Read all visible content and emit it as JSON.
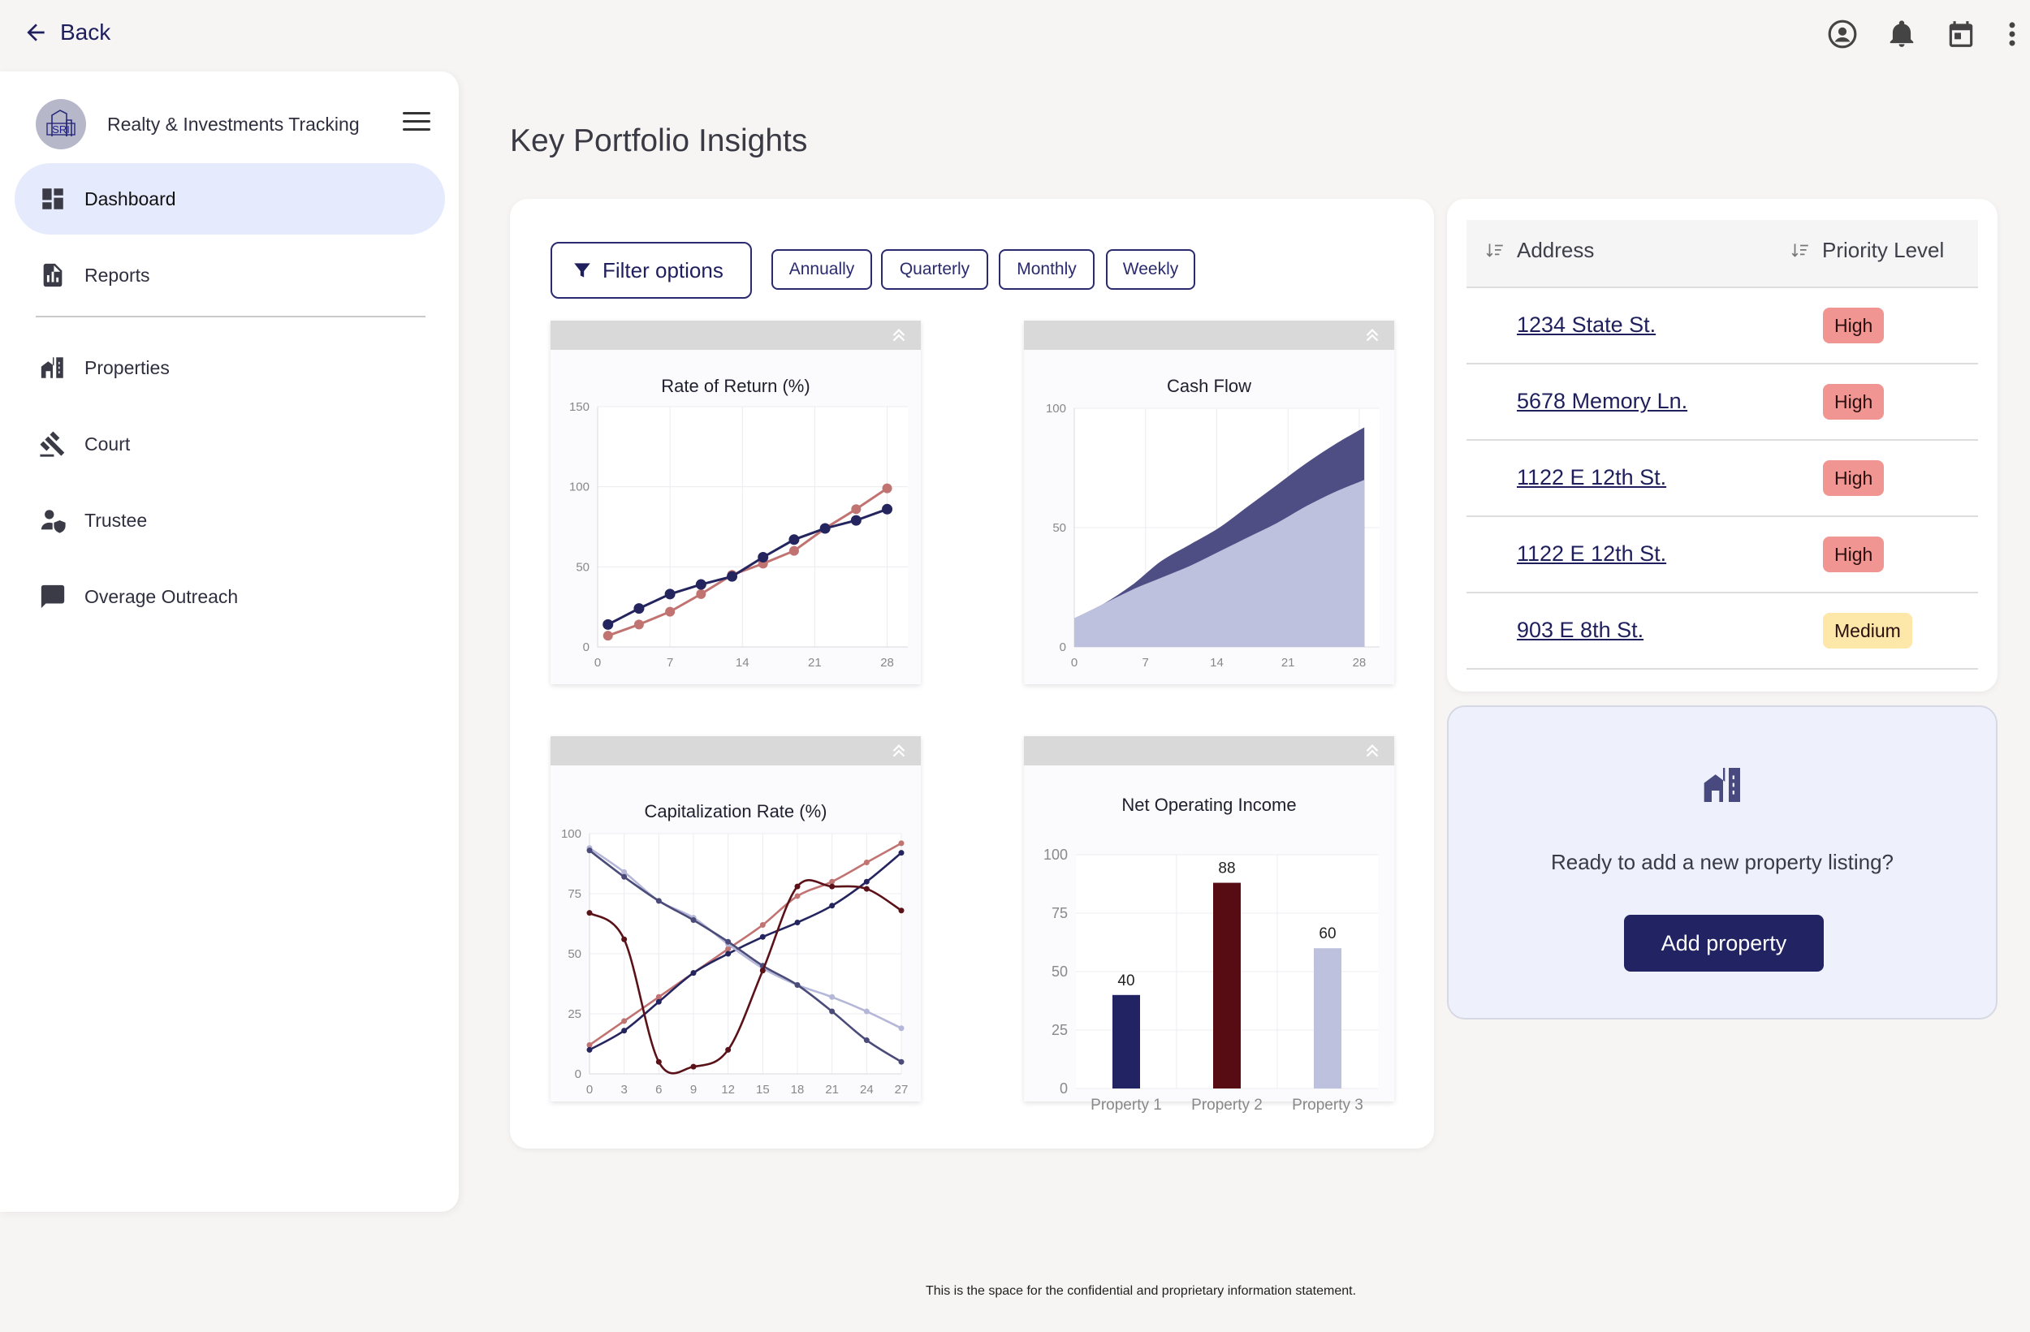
{
  "topbar": {
    "back_label": "Back"
  },
  "sidebar": {
    "brand": "Realty & Investments Tracking",
    "logo_text": "SRI",
    "items": [
      {
        "label": "Dashboard",
        "icon": "dashboard-icon",
        "active": true
      },
      {
        "label": "Reports",
        "icon": "report-icon"
      },
      {
        "label": "Properties",
        "icon": "building-icon"
      },
      {
        "label": "Court",
        "icon": "gavel-icon"
      },
      {
        "label": "Trustee",
        "icon": "person-shield-icon"
      },
      {
        "label": "Overage Outreach",
        "icon": "chat-icon"
      }
    ]
  },
  "main": {
    "title": "Key Portfolio Insights",
    "filter_label": "Filter options",
    "periods": [
      "Annually",
      "Quarterly",
      "Monthly",
      "Weekly"
    ]
  },
  "chart_data": [
    {
      "type": "line",
      "title": "Rate of Return (%)",
      "xticks": [
        "0",
        "7",
        "14",
        "21",
        "28"
      ],
      "yticks": [
        "0",
        "50",
        "100",
        "150"
      ],
      "xlim": [
        0,
        30
      ],
      "ylim": [
        0,
        150
      ],
      "x": [
        0,
        3,
        6,
        9,
        12,
        15,
        18,
        21,
        24,
        27
      ],
      "series": [
        {
          "values": [
            7,
            14,
            22,
            33,
            45,
            52,
            60,
            74,
            86,
            99
          ],
          "color": "#c17372"
        },
        {
          "values": [
            14,
            24,
            33,
            39,
            44,
            56,
            67,
            74,
            79,
            86
          ],
          "color": "#24245e"
        }
      ]
    },
    {
      "type": "area",
      "title": "Cash Flow",
      "xticks": [
        "0",
        "7",
        "14",
        "21",
        "28"
      ],
      "yticks": [
        "0",
        "50",
        "100"
      ],
      "xlim": [
        0,
        30
      ],
      "ylim": [
        0,
        100
      ],
      "x": [
        0,
        3,
        6,
        9,
        12,
        15,
        18,
        21,
        24,
        27,
        30
      ],
      "series": [
        {
          "values": [
            12,
            18,
            24,
            29,
            34,
            40,
            46,
            52,
            59,
            65,
            70
          ],
          "color": "#bec1dd"
        },
        {
          "values": [
            12,
            18,
            26,
            36,
            43,
            50,
            59,
            68,
            77,
            85,
            92
          ],
          "color": "#4e4e85"
        }
      ]
    },
    {
      "type": "line",
      "title": "Capitalization Rate (%)",
      "xticks": [
        "0",
        "3",
        "6",
        "9",
        "12",
        "15",
        "18",
        "21",
        "24",
        "27"
      ],
      "yticks": [
        "0",
        "25",
        "50",
        "75",
        "100"
      ],
      "xlim": [
        0,
        27
      ],
      "ylim": [
        0,
        100
      ],
      "x": [
        0,
        3,
        6,
        9,
        12,
        15,
        18,
        21,
        24,
        27
      ],
      "series": [
        {
          "values": [
            12,
            22,
            32,
            42,
            52,
            62,
            74,
            80,
            88,
            96
          ],
          "color": "#c17372"
        },
        {
          "values": [
            10,
            18,
            30,
            42,
            50,
            57,
            63,
            70,
            80,
            92
          ],
          "color": "#24245e"
        },
        {
          "values": [
            94,
            84,
            72,
            65,
            54,
            44,
            37,
            32,
            26,
            19
          ],
          "color": "#b4b7d8"
        },
        {
          "values": [
            93,
            82,
            72,
            64,
            55,
            45,
            37,
            26,
            14,
            5
          ],
          "color": "#4b4b7a"
        },
        {
          "values": [
            67,
            56,
            5,
            3,
            10,
            43,
            78,
            78,
            77,
            68
          ],
          "color": "#5a1218"
        }
      ]
    },
    {
      "type": "bar",
      "title": "Net Operating Income",
      "categories": [
        "Property 1",
        "Property 2",
        "Property 3"
      ],
      "values": [
        40,
        88,
        60
      ],
      "labels": [
        "40",
        "88",
        "60"
      ],
      "colors": [
        "#222363",
        "#560c12",
        "#bec1dd"
      ],
      "yticks": [
        "0",
        "25",
        "50",
        "75",
        "100"
      ],
      "ylim": [
        0,
        100
      ]
    }
  ],
  "table": {
    "headers": [
      "Address",
      "Priority Level"
    ],
    "rows": [
      {
        "address": "1234 State St.",
        "priority": "High",
        "color": "#f19592"
      },
      {
        "address": "5678 Memory Ln.",
        "priority": "High",
        "color": "#f19592"
      },
      {
        "address": "1122 E 12th St.",
        "priority": "High",
        "color": "#f19592"
      },
      {
        "address": "1122 E 12th St.",
        "priority": "High",
        "color": "#f19592"
      },
      {
        "address": "903 E 8th St.",
        "priority": "Medium",
        "color": "#fde7a9"
      }
    ]
  },
  "add_card": {
    "prompt": "Ready to add a new property listing?",
    "button": "Add property"
  },
  "footer": "This is the space for the confidential and proprietary information statement."
}
